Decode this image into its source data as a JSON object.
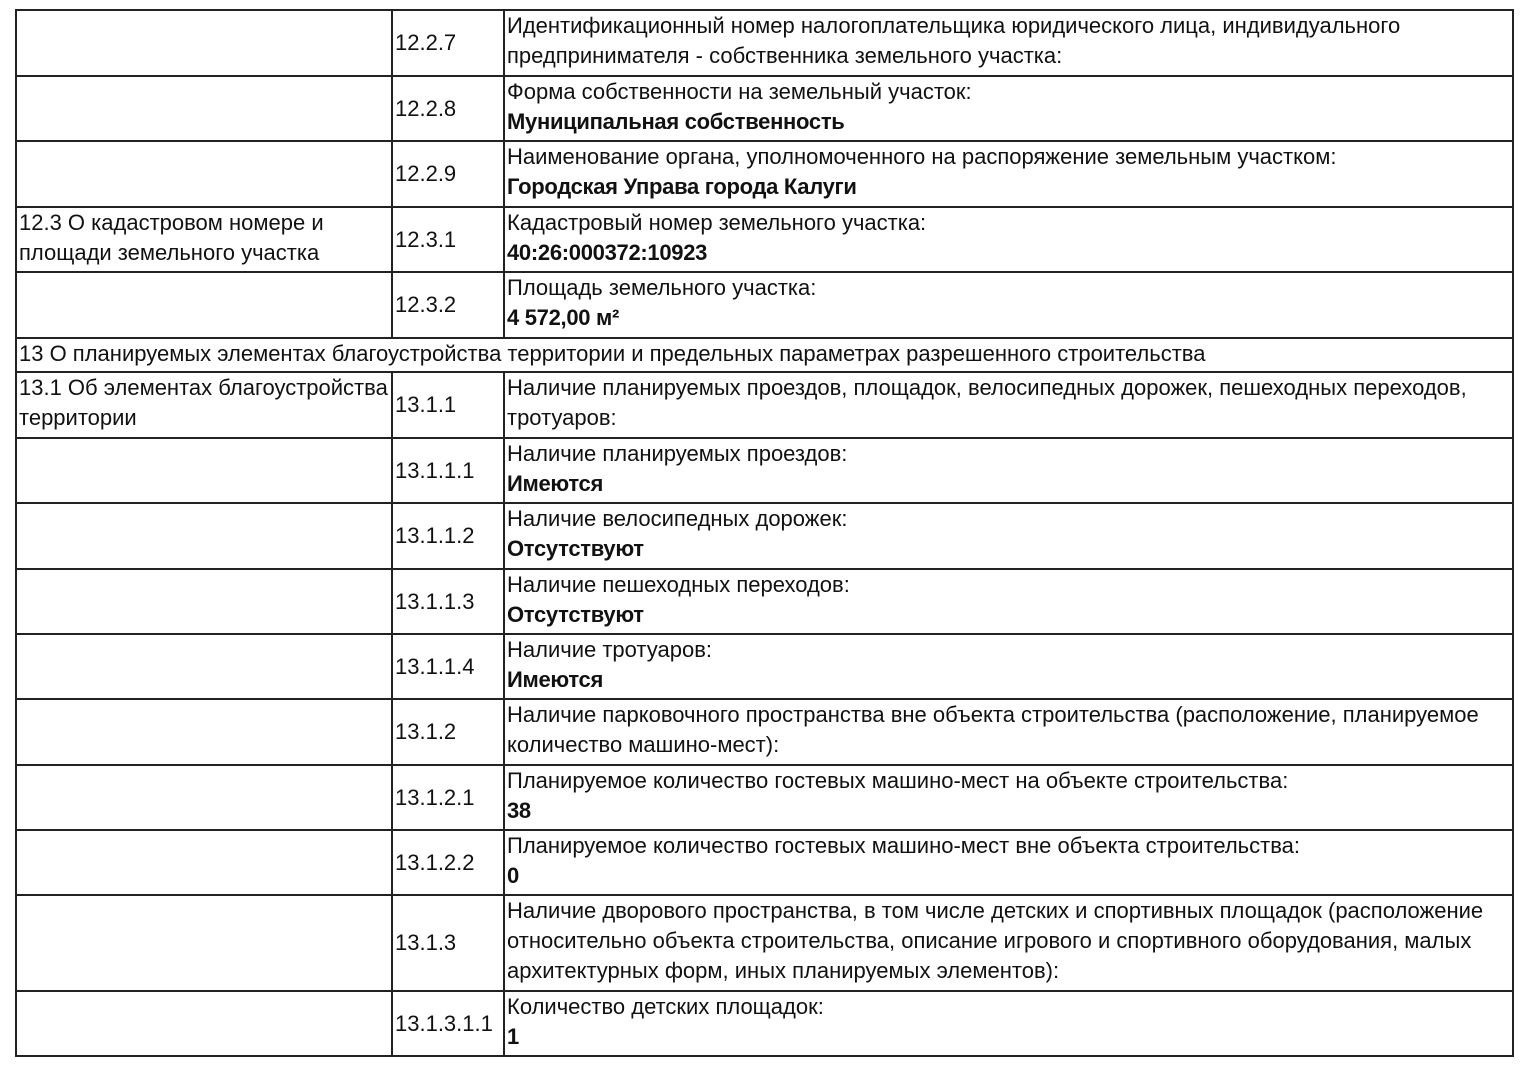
{
  "rows": [
    {
      "section": "",
      "code": "12.2.7",
      "label": "Идентификационный номер налогоплательщика юридического лица, индивидуального предпринимателя - собственника земельного участка:",
      "value": "",
      "height": 66
    },
    {
      "section": "",
      "code": "12.2.8",
      "label": "Форма собственности на земельный участок:",
      "value": "Муниципальная собственность",
      "height": 65
    },
    {
      "section": "",
      "code": "12.2.9",
      "label": "Наименование органа, уполномоченного на распоряжение земельным участком:",
      "value": "Городская Управа города Калуги",
      "height": 66
    },
    {
      "section": "12.3 О кадастровом номере и площади земельного участка",
      "code": "12.3.1",
      "label": "Кадастровый номер земельного участка:",
      "value": "40:26:000372:10923",
      "height": 65
    },
    {
      "section": "",
      "code": "12.3.2",
      "label": "Площадь земельного участка:",
      "value": "4 572,00 м²",
      "height": 66
    },
    {
      "full": "13 О планируемых элементах благоустройства территории и предельных параметрах разрешенного строительства",
      "height": 34
    },
    {
      "section": "13.1 Об элементах благоустройства территории",
      "code": "13.1.1",
      "label": "Наличие планируемых проездов, площадок, велосипедных дорожек, пешеходных переходов, тротуаров:",
      "value": "",
      "height": 66
    },
    {
      "section": "",
      "code": "13.1.1.1",
      "label": "Наличие планируемых проездов:",
      "value": "Имеются",
      "height": 65
    },
    {
      "section": "",
      "code": "13.1.1.2",
      "label": "Наличие велосипедных дорожек:",
      "value": "Отсутствуют",
      "height": 66
    },
    {
      "section": "",
      "code": "13.1.1.3",
      "label": "Наличие пешеходных переходов:",
      "value": "Отсутствуют",
      "height": 65
    },
    {
      "section": "",
      "code": "13.1.1.4",
      "label": "Наличие тротуаров:",
      "value": "Имеются",
      "height": 65
    },
    {
      "section": "",
      "code": "13.1.2",
      "label": "Наличие парковочного пространства вне объекта строительства (расположение, планируемое количество машино-мест):",
      "value": "",
      "height": 66
    },
    {
      "section": "",
      "code": "13.1.2.1",
      "label": "Планируемое количество гостевых машино-мест на объекте строительства:",
      "value": "38",
      "height": 65
    },
    {
      "section": "",
      "code": "13.1.2.2",
      "label": "Планируемое количество гостевых машино-мест вне объекта строительства:",
      "value": "0",
      "height": 65
    },
    {
      "section": "",
      "code": "13.1.3",
      "label": "Наличие дворового пространства, в том числе детских и спортивных площадок (расположение относительно объекта строительства, описание игрового и спортивного оборудования, малых архитектурных форм, иных планируемых элементов):",
      "value": "",
      "height": 96
    },
    {
      "section": "",
      "code": "13.1.3.1.1",
      "label": "Количество детских площадок:",
      "value": "1",
      "height": 65
    }
  ]
}
